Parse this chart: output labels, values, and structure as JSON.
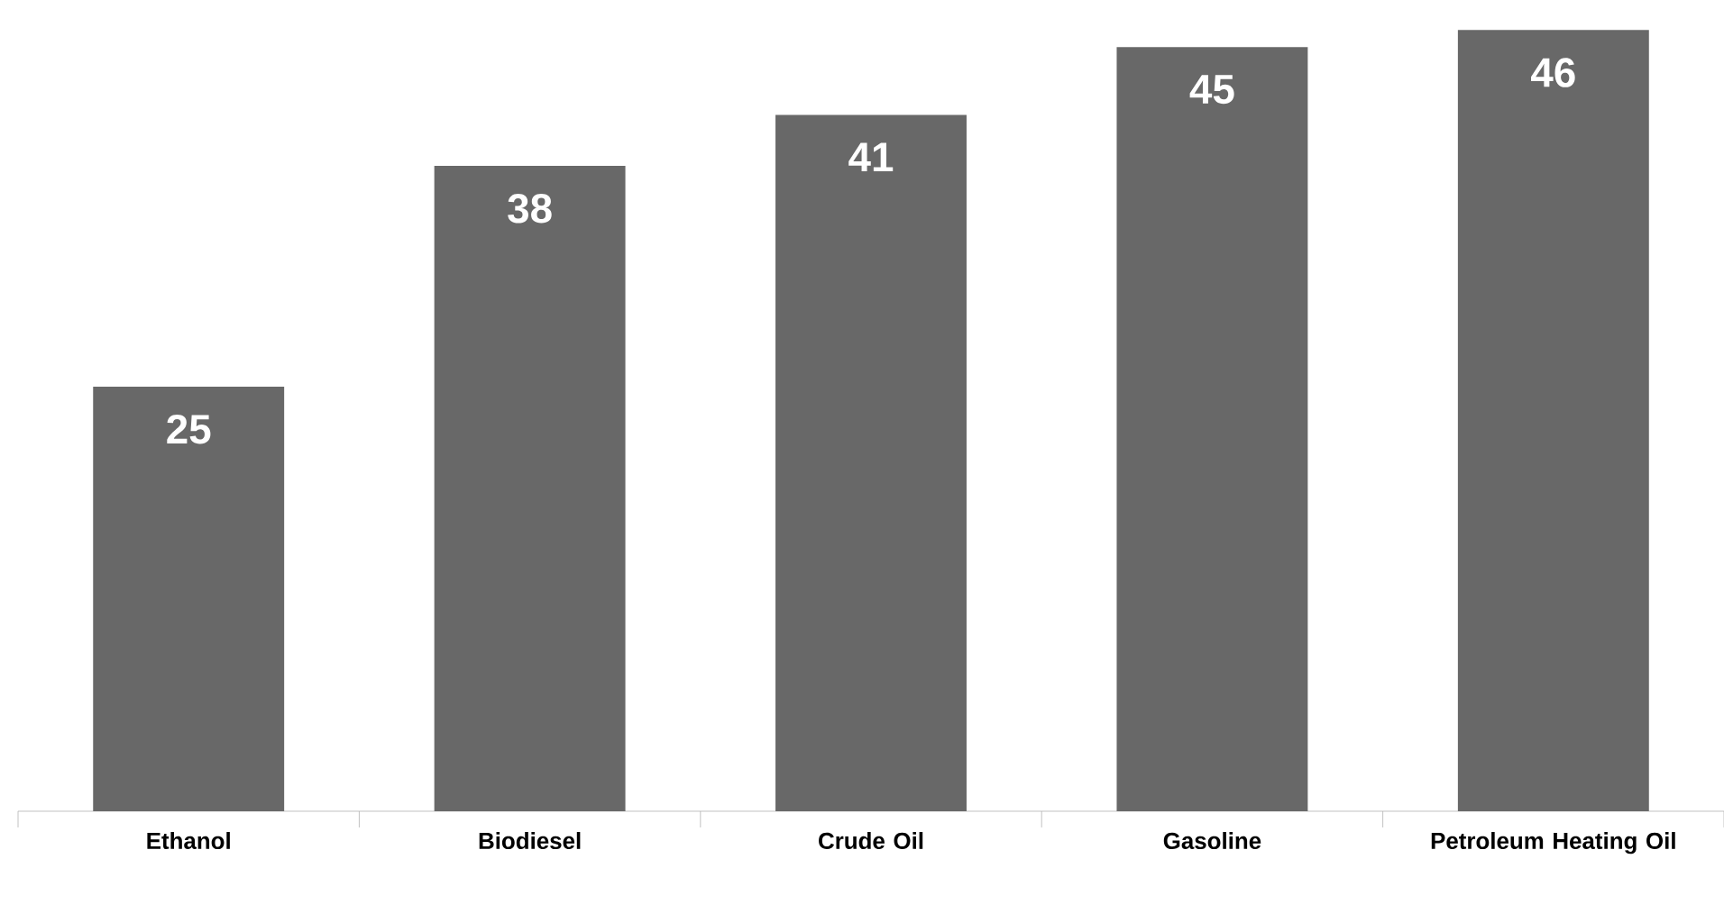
{
  "chart_data": {
    "type": "bar",
    "categories": [
      "Ethanol",
      "Biodiesel",
      "Crude Oil",
      "Gasoline",
      "Petroleum Heating Oil"
    ],
    "values": [
      25,
      38,
      41,
      45,
      46
    ],
    "color": "#686868",
    "data_labels": true
  }
}
